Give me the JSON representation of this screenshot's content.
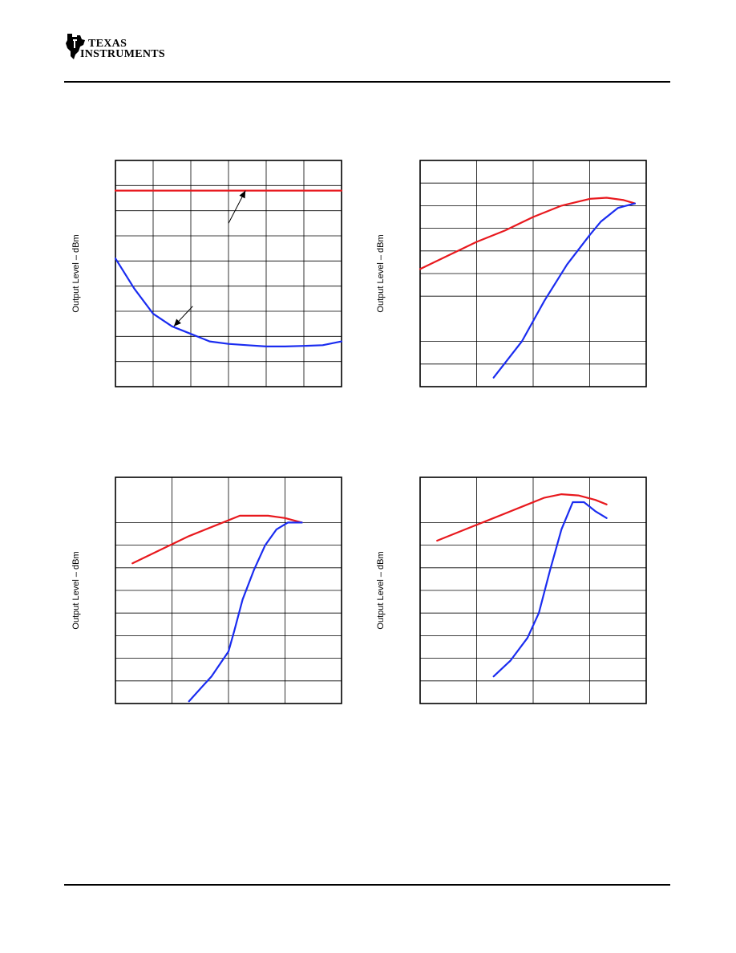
{
  "header": {
    "logo": {
      "line1": "Texas",
      "line2": "Instruments",
      "icon": "ti-logo-icon"
    }
  },
  "colors": {
    "series_red": "#e8191e",
    "series_blue": "#1a2cf0",
    "grid": "#000000",
    "frame": "#000000"
  },
  "chart_data": [
    {
      "type": "line",
      "ylabel": "Output Level – dBm",
      "xlim": [
        0,
        6
      ],
      "ylim": [
        0,
        9
      ],
      "xgrid": [
        1,
        2,
        3,
        4,
        5
      ],
      "ygrid": [
        1,
        2,
        3,
        4,
        5,
        6,
        7,
        8
      ],
      "annotations": [
        {
          "kind": "arrow",
          "from": [
            3.0,
            6.5
          ],
          "to": [
            3.45,
            7.8
          ]
        },
        {
          "kind": "arrow",
          "from": [
            2.05,
            3.2
          ],
          "to": [
            1.55,
            2.4
          ]
        }
      ],
      "series": [
        {
          "color": "red",
          "x": [
            0,
            6
          ],
          "y": [
            7.8,
            7.8
          ]
        },
        {
          "color": "blue",
          "x": [
            0,
            0.5,
            1.0,
            1.5,
            2.0,
            2.5,
            3.0,
            3.5,
            4.0,
            4.5,
            5.0,
            5.5,
            6.0
          ],
          "y": [
            5.1,
            3.9,
            2.9,
            2.4,
            2.1,
            1.8,
            1.7,
            1.65,
            1.6,
            1.6,
            1.62,
            1.65,
            1.8
          ]
        }
      ]
    },
    {
      "type": "line",
      "ylabel": "Output Level – dBm",
      "xlim": [
        0,
        4
      ],
      "ylim": [
        0,
        10
      ],
      "xgrid": [
        1,
        2,
        3
      ],
      "ygrid": [
        1,
        2,
        4,
        5,
        6,
        7,
        8,
        9
      ],
      "series": [
        {
          "color": "red",
          "x": [
            0,
            0.5,
            1.0,
            1.5,
            2.0,
            2.5,
            3.0,
            3.3,
            3.6,
            3.8
          ],
          "y": [
            5.2,
            5.8,
            6.4,
            6.9,
            7.5,
            8.0,
            8.3,
            8.35,
            8.25,
            8.1
          ]
        },
        {
          "color": "blue",
          "x": [
            1.3,
            1.8,
            2.2,
            2.6,
            3.0,
            3.2,
            3.5,
            3.8
          ],
          "y": [
            0.4,
            2.0,
            3.8,
            5.4,
            6.7,
            7.3,
            7.9,
            8.1
          ]
        }
      ]
    },
    {
      "type": "line",
      "ylabel": "Output Level – dBm",
      "xlim": [
        0,
        4
      ],
      "ylim": [
        0,
        10
      ],
      "xgrid": [
        1,
        2,
        3
      ],
      "ygrid": [
        1,
        2,
        3,
        4,
        5,
        6,
        7,
        8
      ],
      "series": [
        {
          "color": "red",
          "x": [
            0.3,
            0.8,
            1.3,
            1.8,
            2.2,
            2.4,
            2.7,
            3.0,
            3.3
          ],
          "y": [
            6.2,
            6.8,
            7.4,
            7.9,
            8.3,
            8.3,
            8.3,
            8.2,
            8.0
          ]
        },
        {
          "color": "blue",
          "x": [
            1.3,
            1.7,
            2.0,
            2.1,
            2.25,
            2.45,
            2.65,
            2.85,
            3.05,
            3.3
          ],
          "y": [
            0.1,
            1.2,
            2.3,
            3.2,
            4.6,
            5.9,
            7.0,
            7.7,
            8.0,
            8.0
          ]
        }
      ]
    },
    {
      "type": "line",
      "ylabel": "Output Level – dBm",
      "xlim": [
        0,
        4
      ],
      "ylim": [
        0,
        10
      ],
      "xgrid": [
        1,
        2,
        3
      ],
      "ygrid": [
        1,
        2,
        3,
        4,
        5,
        6,
        7,
        8
      ],
      "series": [
        {
          "color": "red",
          "x": [
            0.3,
            0.8,
            1.3,
            1.8,
            2.2,
            2.5,
            2.8,
            3.1,
            3.3
          ],
          "y": [
            7.2,
            7.7,
            8.2,
            8.7,
            9.1,
            9.25,
            9.2,
            9.0,
            8.8
          ]
        },
        {
          "color": "blue",
          "x": [
            1.3,
            1.6,
            1.9,
            2.1,
            2.3,
            2.5,
            2.7,
            2.9,
            3.1,
            3.3
          ],
          "y": [
            1.2,
            1.9,
            2.9,
            4.0,
            5.9,
            7.7,
            8.9,
            8.9,
            8.5,
            8.2
          ]
        }
      ]
    }
  ]
}
